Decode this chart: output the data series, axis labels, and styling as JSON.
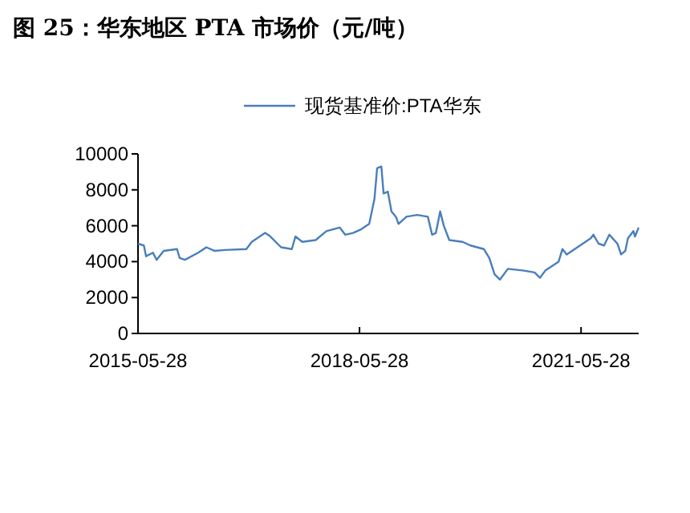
{
  "chart_data": {
    "type": "line",
    "title": "图 25：华东地区 PTA 市场价（元/吨）",
    "x": [
      "2015-05-28",
      "2015-06-26",
      "2015-07-07",
      "2015-08-10",
      "2015-08-28",
      "2015-10-02",
      "2015-12-07",
      "2015-12-20",
      "2016-01-15",
      "2016-03-21",
      "2016-04-30",
      "2016-06-09",
      "2016-07-31",
      "2016-11-14",
      "2016-12-11",
      "2017-02-15",
      "2017-03-13",
      "2017-05-05",
      "2017-06-27",
      "2017-07-15",
      "2017-08-18",
      "2017-10-23",
      "2017-12-15",
      "2018-02-19",
      "2018-03-18",
      "2018-04-26",
      "2018-06-05",
      "2018-07-15",
      "2018-08-10",
      "2018-08-23",
      "2018-09-13",
      "2018-09-24",
      "2018-10-15",
      "2018-11-02",
      "2018-11-24",
      "2018-12-07",
      "2019-01-15",
      "2019-03-09",
      "2019-05-01",
      "2019-05-22",
      "2019-06-10",
      "2019-07-01",
      "2019-07-19",
      "2019-08-15",
      "2019-10-20",
      "2019-11-28",
      "2020-02-02",
      "2020-02-29",
      "2020-03-26",
      "2020-04-22",
      "2020-05-31",
      "2020-08-18",
      "2020-10-10",
      "2020-11-06",
      "2020-12-02",
      "2021-02-06",
      "2021-02-25",
      "2021-03-18",
      "2021-05-10",
      "2021-07-15",
      "2021-07-28",
      "2021-08-23",
      "2021-09-19",
      "2021-10-15",
      "2021-11-24",
      "2021-12-12",
      "2022-01-02",
      "2022-01-15",
      "2022-02-11",
      "2022-02-19",
      "2022-03-09"
    ],
    "series": [
      {
        "name": "现货基准价:PTA华东",
        "color": "#4a7ebb",
        "values": [
          5000,
          4900,
          4300,
          4500,
          4100,
          4600,
          4700,
          4200,
          4100,
          4500,
          4800,
          4600,
          4650,
          4700,
          5100,
          5600,
          5400,
          4800,
          4700,
          5400,
          5100,
          5200,
          5700,
          5900,
          5500,
          5600,
          5800,
          6100,
          7500,
          9200,
          9300,
          7800,
          7900,
          6800,
          6500,
          6100,
          6500,
          6600,
          6500,
          5500,
          5600,
          6800,
          6000,
          5200,
          5100,
          4900,
          4700,
          4200,
          3300,
          3000,
          3600,
          3500,
          3400,
          3100,
          3500,
          4000,
          4700,
          4400,
          4800,
          5300,
          5500,
          5000,
          4900,
          5500,
          5000,
          4400,
          4600,
          5300,
          5700,
          5400,
          5900
        ]
      }
    ],
    "xlim": [
      "2015-05-28",
      "2022-03-09"
    ],
    "xticks": [
      "2015-05-28",
      "2018-05-28",
      "2021-05-28"
    ],
    "ylim": [
      0,
      10000
    ],
    "yticks": [
      0,
      2000,
      4000,
      6000,
      8000,
      10000
    ],
    "legend": "top",
    "grid": false,
    "marker": "none",
    "line_style": "solid"
  }
}
